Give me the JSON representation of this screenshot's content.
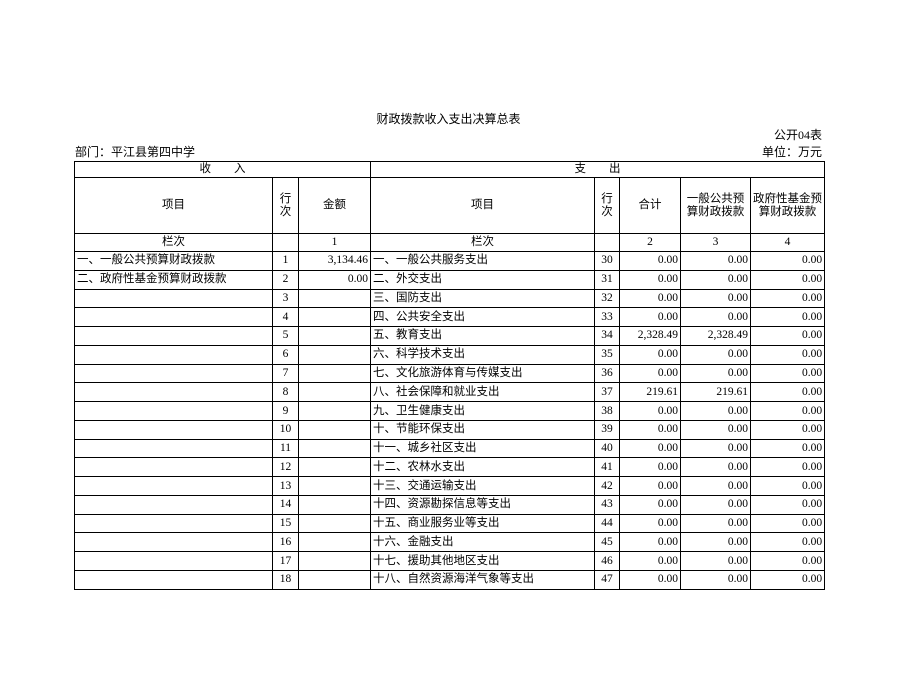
{
  "header": {
    "title": "财政拨款收入支出决算总表",
    "code": "公开04表",
    "department": "部门：平江县第四中学",
    "unit": "单位：万元"
  },
  "table": {
    "groups": [
      "收　　入",
      "支　　出"
    ],
    "columns": [
      "项目",
      "行次",
      "金额",
      "项目",
      "行次",
      "合计",
      "一般公共预算财政拨款",
      "政府性基金预算财政拨款"
    ],
    "index_row": [
      "栏次",
      null,
      "1",
      "栏次",
      null,
      "2",
      "3",
      "4"
    ],
    "rows": [
      [
        "一、一般公共预算财政拨款",
        1,
        "3,134.46",
        "一、一般公共服务支出",
        30,
        "0.00",
        "0.00",
        "0.00"
      ],
      [
        "二、政府性基金预算财政拨款",
        2,
        "0.00",
        "二、外交支出",
        31,
        "0.00",
        "0.00",
        "0.00"
      ],
      [
        null,
        3,
        null,
        "三、国防支出",
        32,
        "0.00",
        "0.00",
        "0.00"
      ],
      [
        null,
        4,
        null,
        "四、公共安全支出",
        33,
        "0.00",
        "0.00",
        "0.00"
      ],
      [
        null,
        5,
        null,
        "五、教育支出",
        34,
        "2,328.49",
        "2,328.49",
        "0.00"
      ],
      [
        null,
        6,
        null,
        "六、科学技术支出",
        35,
        "0.00",
        "0.00",
        "0.00"
      ],
      [
        null,
        7,
        null,
        "七、文化旅游体育与传媒支出",
        36,
        "0.00",
        "0.00",
        "0.00"
      ],
      [
        null,
        8,
        null,
        "八、社会保障和就业支出",
        37,
        "219.61",
        "219.61",
        "0.00"
      ],
      [
        null,
        9,
        null,
        "九、卫生健康支出",
        38,
        "0.00",
        "0.00",
        "0.00"
      ],
      [
        null,
        10,
        null,
        "十、节能环保支出",
        39,
        "0.00",
        "0.00",
        "0.00"
      ],
      [
        null,
        11,
        null,
        "十一、城乡社区支出",
        40,
        "0.00",
        "0.00",
        "0.00"
      ],
      [
        null,
        12,
        null,
        "十二、农林水支出",
        41,
        "0.00",
        "0.00",
        "0.00"
      ],
      [
        null,
        13,
        null,
        "十三、交通运输支出",
        42,
        "0.00",
        "0.00",
        "0.00"
      ],
      [
        null,
        14,
        null,
        "十四、资源勘探信息等支出",
        43,
        "0.00",
        "0.00",
        "0.00"
      ],
      [
        null,
        15,
        null,
        "十五、商业服务业等支出",
        44,
        "0.00",
        "0.00",
        "0.00"
      ],
      [
        null,
        16,
        null,
        "十六、金融支出",
        45,
        "0.00",
        "0.00",
        "0.00"
      ],
      [
        null,
        17,
        null,
        "十七、援助其他地区支出",
        46,
        "0.00",
        "0.00",
        "0.00"
      ],
      [
        null,
        18,
        null,
        "十八、自然资源海洋气象等支出",
        47,
        "0.00",
        "0.00",
        "0.00"
      ]
    ]
  }
}
